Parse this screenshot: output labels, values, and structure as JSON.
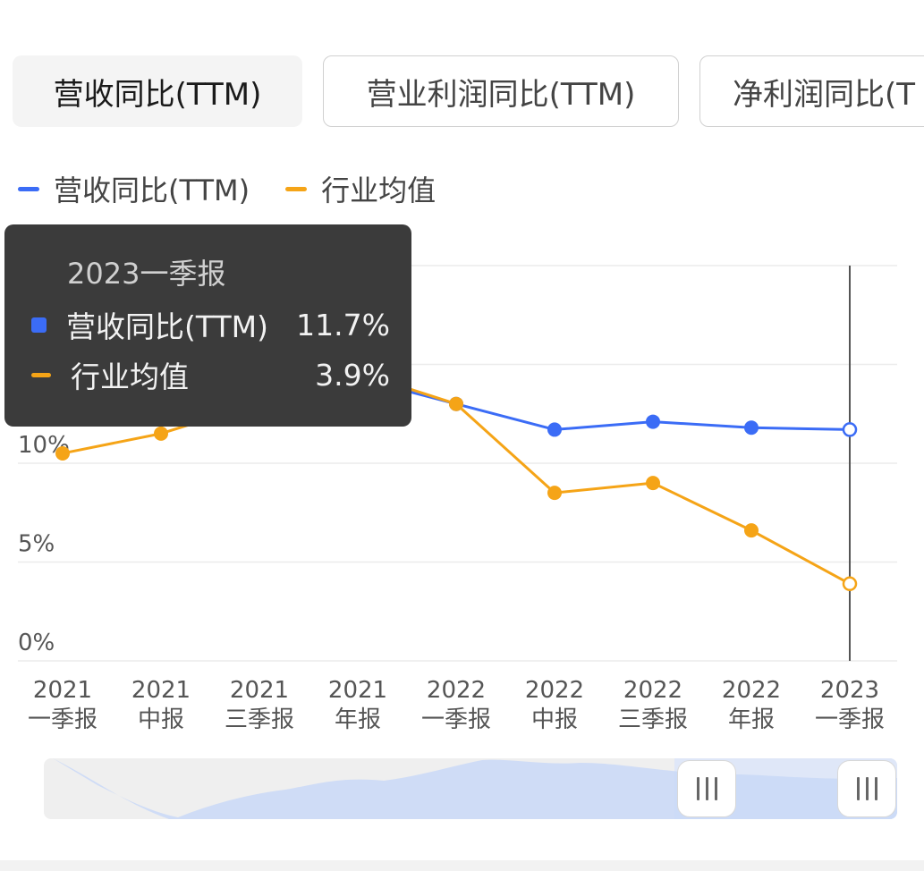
{
  "tabs": [
    {
      "label": "营收同比(TTM)",
      "active": true
    },
    {
      "label": "营业利润同比(TTM)",
      "active": false
    },
    {
      "label": "净利润同比(T",
      "active": false
    }
  ],
  "legend": [
    {
      "label": "营收同比(TTM)",
      "color": "#3b6cf6"
    },
    {
      "label": "行业均值",
      "color": "#f5a417"
    }
  ],
  "tooltip": {
    "title": "2023一季报",
    "rows": [
      {
        "name": "营收同比(TTM)",
        "value": "11.7%",
        "color": "#3b6cf6"
      },
      {
        "name": "行业均值",
        "value": "3.9%",
        "color": "#f5a417"
      }
    ]
  },
  "chart_data": {
    "type": "line",
    "categories": [
      [
        "2021",
        "一季报"
      ],
      [
        "2021",
        "中报"
      ],
      [
        "2021",
        "三季报"
      ],
      [
        "2021",
        "年报"
      ],
      [
        "2022",
        "一季报"
      ],
      [
        "2022",
        "中报"
      ],
      [
        "2022",
        "三季报"
      ],
      [
        "2022",
        "年报"
      ],
      [
        "2023",
        "一季报"
      ]
    ],
    "series": [
      {
        "name": "营收同比(TTM)",
        "color": "#3b6cf6",
        "values": [
          null,
          null,
          null,
          14.3,
          13.0,
          11.7,
          12.1,
          11.8,
          11.7
        ]
      },
      {
        "name": "行业均值",
        "color": "#f5a417",
        "values": [
          10.5,
          11.5,
          null,
          14.6,
          13.0,
          8.5,
          9.0,
          6.6,
          3.9
        ]
      }
    ],
    "y_ticks": [
      {
        "value": 0,
        "label": "0%"
      },
      {
        "value": 5,
        "label": "5%"
      },
      {
        "value": 10,
        "label": "10%"
      },
      {
        "value": 15,
        "label": ""
      },
      {
        "value": 20,
        "label": ""
      }
    ],
    "ylim": [
      0,
      20
    ],
    "grid": true,
    "legend_position": "top-left",
    "highlight_index": 8
  },
  "slider": {
    "range_start": 0.76,
    "range_end": 1.0
  }
}
